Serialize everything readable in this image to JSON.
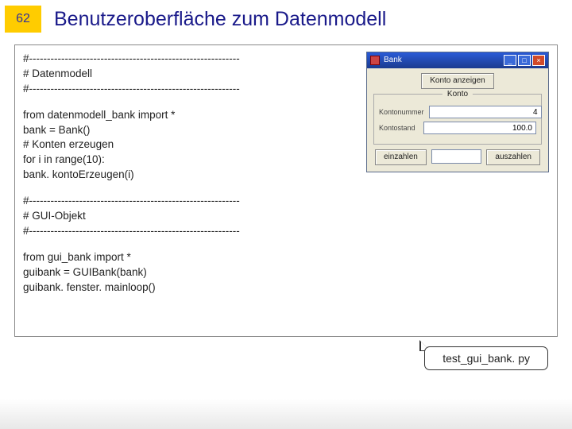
{
  "slide_number": "62",
  "title": "Benutzeroberfläche zum Datenmodell",
  "code": {
    "block1": "#-----------------------------------------------------------\n# Datenmodell\n#-----------------------------------------------------------",
    "block2": "from datenmodell_bank import *\nbank = Bank()\n# Konten erzeugen\nfor i in range(10):\n   bank. kontoErzeugen(i)",
    "block3": "#-----------------------------------------------------------\n# GUI-Objekt\n#-----------------------------------------------------------",
    "block4": "from gui_bank import *\nguibank = GUIBank(bank)\nguibank. fenster. mainloop()"
  },
  "window": {
    "title": "Bank",
    "btn_show": "Konto anzeigen",
    "group_title": "Konto",
    "label_nr": "Kontonummer",
    "value_nr": "4",
    "label_stand": "Kontostand",
    "value_stand": "100.0",
    "btn_deposit": "einzahlen",
    "btn_withdraw": "auszahlen"
  },
  "filename": "test_gui_bank. py",
  "colors": {
    "accent_yellow": "#ffcc00",
    "title_blue": "#1a1a8a",
    "titlebar_from": "#2a5bd7",
    "titlebar_to": "#1a3a8f",
    "win_bg": "#ece9d8"
  }
}
